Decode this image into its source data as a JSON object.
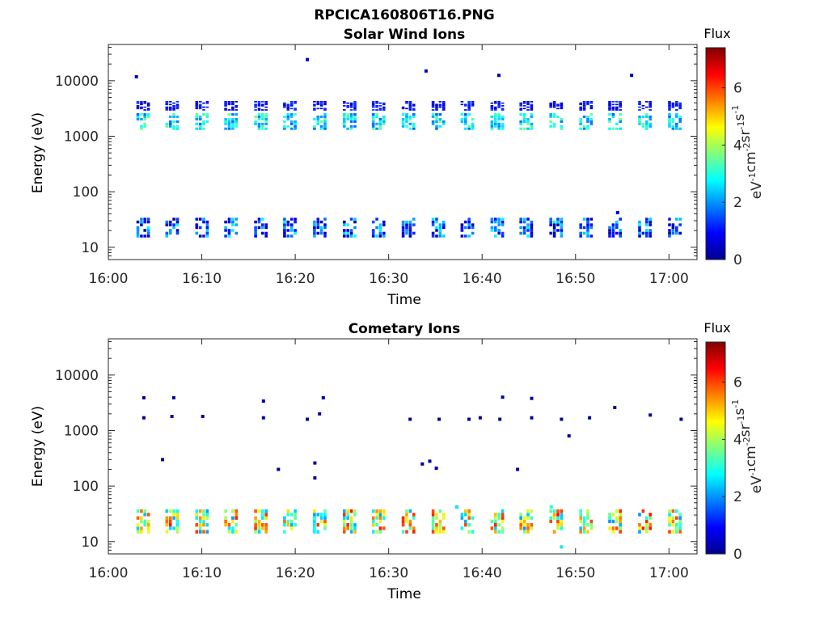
{
  "figure": {
    "title": "RPCICA160806T16.PNG"
  },
  "colormap": {
    "name": "jet"
  },
  "chart_data": [
    {
      "type": "heatmap",
      "title": "Solar Wind Ions",
      "xlabel": "Time",
      "ylabel": "Energy (eV)",
      "x_ticks": [
        "16:00",
        "16:10",
        "16:20",
        "16:30",
        "16:40",
        "16:50",
        "17:00"
      ],
      "x_range_minutes": [
        0,
        63
      ],
      "y_ticks": [
        "10",
        "100",
        "1000",
        "10000"
      ],
      "y_scale": "log",
      "y_range": [
        6,
        45000
      ],
      "colorbar": {
        "title": "Flux",
        "label": "eV-1cm-2sr-1s-1",
        "ticks": [
          "0",
          "2",
          "4",
          "6"
        ],
        "range": [
          0,
          7.4
        ]
      },
      "sweep_times_min": [
        3.7,
        6.8,
        10.0,
        13.1,
        16.3,
        19.4,
        22.6,
        25.8,
        28.9,
        32.1,
        35.3,
        38.4,
        41.6,
        44.7,
        47.9,
        51.1,
        54.2,
        57.4,
        60.6
      ],
      "bands": [
        {
          "e_low": 1300,
          "e_high": 2600,
          "flux_min": 1.6,
          "flux_max": 3.6
        },
        {
          "e_low": 2900,
          "e_high": 4300,
          "flux_min": 0.3,
          "flux_max": 1.4
        },
        {
          "e_low": 15,
          "e_high": 34,
          "flux_min": 0.2,
          "flux_max": 2.8
        }
      ],
      "isolated_points": [
        {
          "t": 3.0,
          "e": 11800,
          "flux": 0.5
        },
        {
          "t": 21.3,
          "e": 24000,
          "flux": 0.5
        },
        {
          "t": 34.0,
          "e": 15000,
          "flux": 0.5
        },
        {
          "t": 41.8,
          "e": 12500,
          "flux": 0.5
        },
        {
          "t": 56.0,
          "e": 12500,
          "flux": 0.5
        },
        {
          "t": 54.5,
          "e": 42,
          "flux": 0.8
        }
      ]
    },
    {
      "type": "heatmap",
      "title": "Cometary Ions",
      "xlabel": "Time",
      "ylabel": "Energy (eV)",
      "x_ticks": [
        "16:00",
        "16:10",
        "16:20",
        "16:30",
        "16:40",
        "16:50",
        "17:00"
      ],
      "x_range_minutes": [
        0,
        63
      ],
      "y_ticks": [
        "10",
        "100",
        "1000",
        "10000"
      ],
      "y_scale": "log",
      "y_range": [
        6,
        45000
      ],
      "colorbar": {
        "title": "Flux",
        "label": "eV-1cm-2sr-1s-1",
        "ticks": [
          "0",
          "2",
          "4",
          "6"
        ],
        "range": [
          0,
          7.4
        ]
      },
      "sweep_times_min": [
        3.7,
        6.8,
        10.0,
        13.1,
        16.3,
        19.4,
        22.6,
        25.8,
        28.9,
        32.1,
        35.3,
        38.4,
        41.6,
        44.7,
        47.9,
        51.1,
        54.2,
        57.4,
        60.6
      ],
      "bands": [
        {
          "e_low": 14,
          "e_high": 38,
          "flux_min": 2.0,
          "flux_max": 6.4
        }
      ],
      "isolated_points": [
        {
          "t": 3.8,
          "e": 3900,
          "flux": 0.2
        },
        {
          "t": 3.8,
          "e": 1700,
          "flux": 0.2
        },
        {
          "t": 5.8,
          "e": 300,
          "flux": 0.2
        },
        {
          "t": 7.0,
          "e": 3900,
          "flux": 0.3
        },
        {
          "t": 6.8,
          "e": 1800,
          "flux": 0.3
        },
        {
          "t": 10.1,
          "e": 1800,
          "flux": 0.2
        },
        {
          "t": 16.6,
          "e": 3400,
          "flux": 0.3
        },
        {
          "t": 16.6,
          "e": 1700,
          "flux": 0.2
        },
        {
          "t": 18.2,
          "e": 200,
          "flux": 0.2
        },
        {
          "t": 21.3,
          "e": 1600,
          "flux": 0.2
        },
        {
          "t": 22.1,
          "e": 260,
          "flux": 0.2
        },
        {
          "t": 22.1,
          "e": 140,
          "flux": 0.2
        },
        {
          "t": 23.0,
          "e": 3900,
          "flux": 0.2
        },
        {
          "t": 22.6,
          "e": 2000,
          "flux": 0.2
        },
        {
          "t": 32.3,
          "e": 1600,
          "flux": 0.2
        },
        {
          "t": 33.6,
          "e": 250,
          "flux": 0.2
        },
        {
          "t": 34.4,
          "e": 280,
          "flux": 0.2
        },
        {
          "t": 35.1,
          "e": 210,
          "flux": 0.2
        },
        {
          "t": 35.4,
          "e": 1600,
          "flux": 0.2
        },
        {
          "t": 38.6,
          "e": 1600,
          "flux": 0.2
        },
        {
          "t": 39.8,
          "e": 1700,
          "flux": 0.2
        },
        {
          "t": 42.2,
          "e": 4000,
          "flux": 0.3
        },
        {
          "t": 41.9,
          "e": 1600,
          "flux": 0.2
        },
        {
          "t": 43.8,
          "e": 200,
          "flux": 0.2
        },
        {
          "t": 45.3,
          "e": 3800,
          "flux": 0.2
        },
        {
          "t": 45.3,
          "e": 1700,
          "flux": 0.2
        },
        {
          "t": 48.5,
          "e": 1600,
          "flux": 0.2
        },
        {
          "t": 49.3,
          "e": 800,
          "flux": 0.2
        },
        {
          "t": 51.5,
          "e": 1700,
          "flux": 0.2
        },
        {
          "t": 54.2,
          "e": 2600,
          "flux": 0.2
        },
        {
          "t": 58.0,
          "e": 1900,
          "flux": 0.3
        },
        {
          "t": 61.3,
          "e": 1600,
          "flux": 0.2
        },
        {
          "t": 37.3,
          "e": 42,
          "flux": 2.6
        },
        {
          "t": 47.4,
          "e": 42,
          "flux": 3.0
        },
        {
          "t": 48.5,
          "e": 8,
          "flux": 2.6
        }
      ]
    }
  ]
}
